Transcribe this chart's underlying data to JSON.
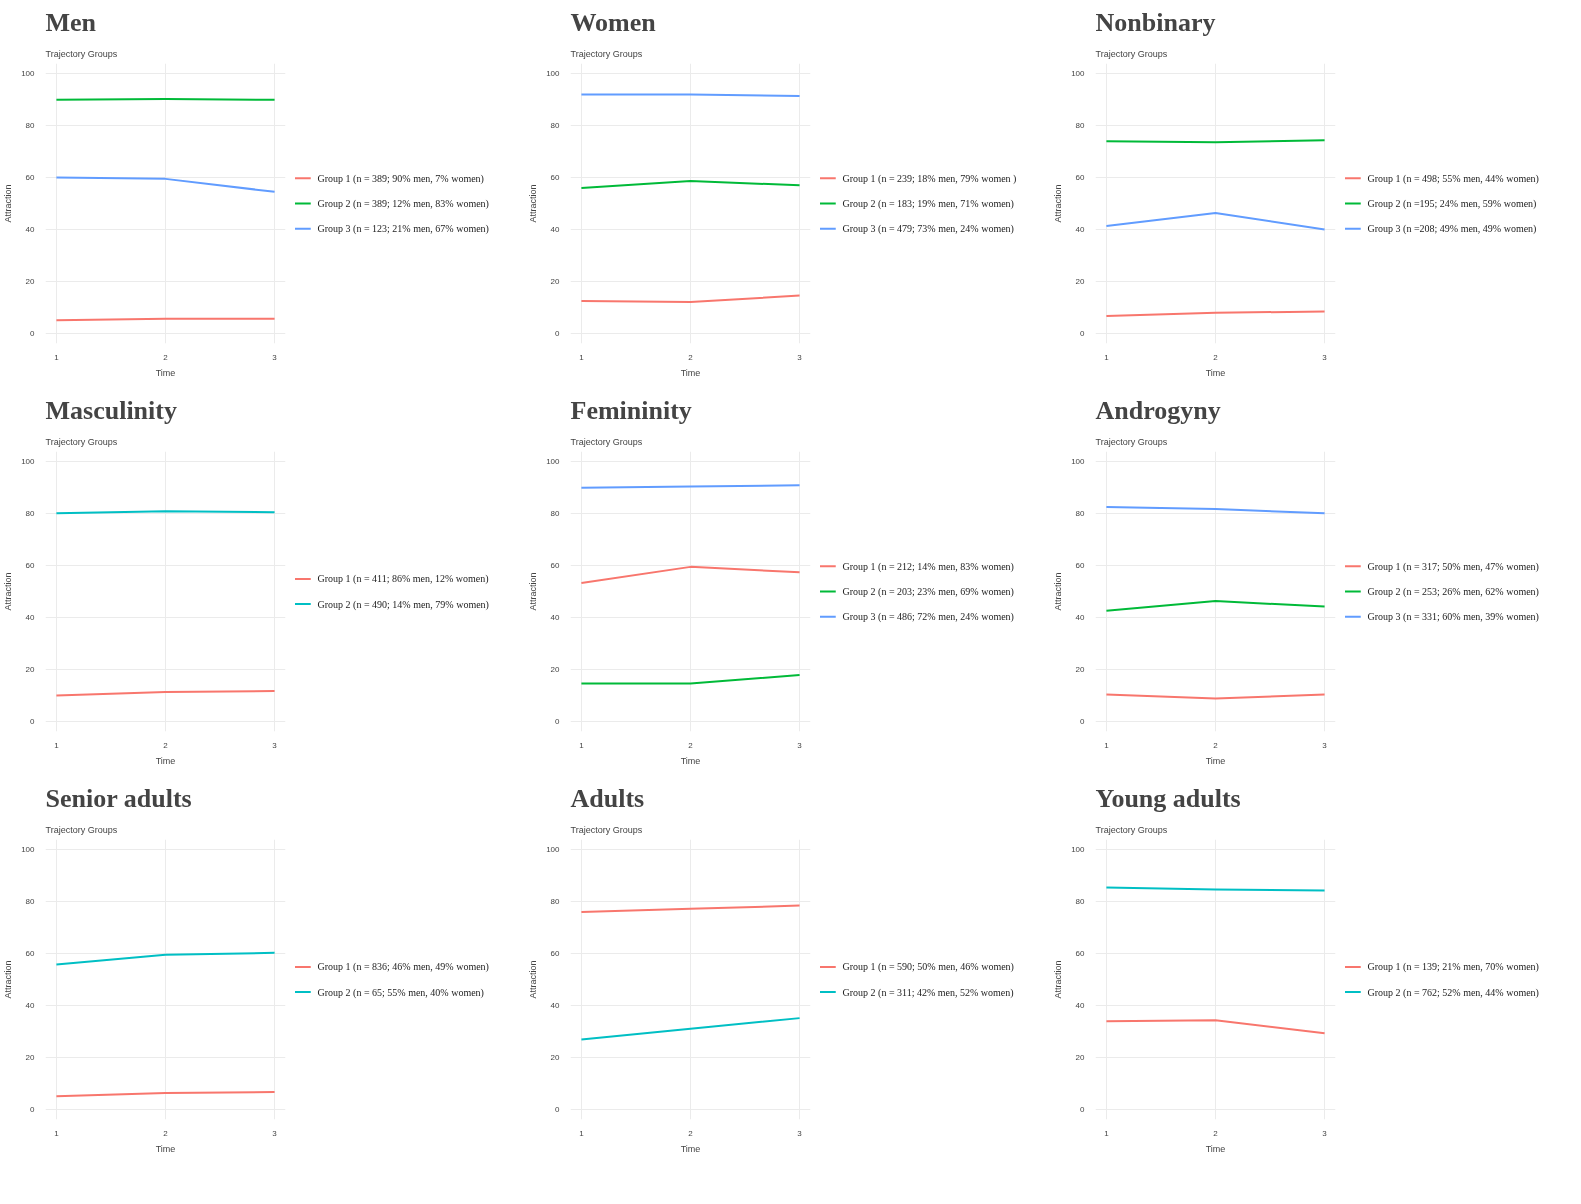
{
  "chart_data": [
    {
      "type": "line",
      "title": "Men",
      "subtitle": "Trajectory Groups",
      "xlabel": "Time",
      "ylabel": "Attraction",
      "x": [
        1,
        2,
        3
      ],
      "xlim": [
        0.9,
        3.1
      ],
      "xticks": [
        1,
        2,
        3
      ],
      "ylim": [
        -4,
        104
      ],
      "yticks": [
        0,
        20,
        40,
        60,
        80,
        100
      ],
      "grid": true,
      "legend": "right",
      "series": [
        {
          "name": "Group 1 (n = 389; 90% men, 7% women)",
          "color": "#f8766d",
          "values": [
            5,
            5.5,
            5.5
          ]
        },
        {
          "name": "Group 2 (n = 389; 12% men, 83% women)",
          "color": "#00ba38",
          "values": [
            90,
            90.3,
            90
          ]
        },
        {
          "name": "Group 3 (n = 123; 21% men, 67% women)",
          "color": "#619cff",
          "values": [
            60,
            59.5,
            54.5
          ]
        }
      ]
    },
    {
      "type": "line",
      "title": "Women",
      "subtitle": "Trajectory Groups",
      "xlabel": "Time",
      "ylabel": "Attraction",
      "x": [
        1,
        2,
        3
      ],
      "xlim": [
        0.9,
        3.1
      ],
      "xticks": [
        1,
        2,
        3
      ],
      "ylim": [
        -4,
        104
      ],
      "yticks": [
        0,
        20,
        40,
        60,
        80,
        100
      ],
      "grid": true,
      "legend": "right",
      "series": [
        {
          "name": "Group 1 (n = 239; 18% men, 79% women )",
          "color": "#f8766d",
          "values": [
            12.4,
            12,
            14.5
          ]
        },
        {
          "name": "Group 2 (n = 183; 19% men, 71% women)",
          "color": "#00ba38",
          "values": [
            56,
            58.7,
            57
          ]
        },
        {
          "name": "Group 3 (n = 479; 73% men, 24% women)",
          "color": "#619cff",
          "values": [
            92,
            92,
            91.5
          ]
        }
      ]
    },
    {
      "type": "line",
      "title": "Nonbinary",
      "subtitle": "Trajectory Groups",
      "xlabel": "Time",
      "ylabel": "Attraction",
      "x": [
        1,
        2,
        3
      ],
      "xlim": [
        0.9,
        3.1
      ],
      "xticks": [
        1,
        2,
        3
      ],
      "ylim": [
        -4,
        104
      ],
      "yticks": [
        0,
        20,
        40,
        60,
        80,
        100
      ],
      "grid": true,
      "legend": "right",
      "series": [
        {
          "name": "Group 1 (n = 498; 55% men, 44% women)",
          "color": "#f8766d",
          "values": [
            6.6,
            7.9,
            8.3
          ]
        },
        {
          "name": "Group 2 (n =195; 24% men, 59% women)",
          "color": "#00ba38",
          "values": [
            74,
            73.6,
            74.4
          ]
        },
        {
          "name": "Group 3 (n =208; 49% men, 49% women)",
          "color": "#619cff",
          "values": [
            41.3,
            46.3,
            40
          ]
        }
      ]
    },
    {
      "type": "line",
      "title": "Masculinity",
      "subtitle": "Trajectory Groups",
      "xlabel": "Time",
      "ylabel": "Attraction",
      "x": [
        1,
        2,
        3
      ],
      "xlim": [
        0.9,
        3.1
      ],
      "xticks": [
        1,
        2,
        3
      ],
      "ylim": [
        -4,
        104
      ],
      "yticks": [
        0,
        20,
        40,
        60,
        80,
        100
      ],
      "grid": true,
      "legend": "right",
      "series": [
        {
          "name": "Group 1 (n = 411; 86% men, 12% women)",
          "color": "#f8766d",
          "values": [
            9.9,
            11.2,
            11.6
          ]
        },
        {
          "name": "Group 2 (n = 490; 14% men, 79% women)",
          "color": "#00bfc4",
          "values": [
            80.2,
            81,
            80.6
          ]
        }
      ]
    },
    {
      "type": "line",
      "title": "Femininity",
      "subtitle": "Trajectory Groups",
      "xlabel": "Time",
      "ylabel": "Attraction",
      "x": [
        1,
        2,
        3
      ],
      "xlim": [
        0.9,
        3.1
      ],
      "xticks": [
        1,
        2,
        3
      ],
      "ylim": [
        -4,
        104
      ],
      "yticks": [
        0,
        20,
        40,
        60,
        80,
        100
      ],
      "grid": true,
      "legend": "right",
      "series": [
        {
          "name": "Group 1 (n = 212; 14% men, 83% women)",
          "color": "#f8766d",
          "values": [
            53.3,
            59.5,
            57.4
          ]
        },
        {
          "name": "Group 2 (n = 203; 23% men, 69% women)",
          "color": "#00ba38",
          "values": [
            14.5,
            14.5,
            17.8
          ]
        },
        {
          "name": "Group 3 (n = 486; 72% men, 24% women)",
          "color": "#619cff",
          "values": [
            90,
            90.5,
            91
          ]
        }
      ]
    },
    {
      "type": "line",
      "title": "Androgyny",
      "subtitle": "Trajectory Groups",
      "xlabel": "Time",
      "ylabel": "Attraction",
      "x": [
        1,
        2,
        3
      ],
      "xlim": [
        0.9,
        3.1
      ],
      "xticks": [
        1,
        2,
        3
      ],
      "ylim": [
        -4,
        104
      ],
      "yticks": [
        0,
        20,
        40,
        60,
        80,
        100
      ],
      "grid": true,
      "legend": "right",
      "series": [
        {
          "name": "Group 1 (n = 317; 50% men, 47% women)",
          "color": "#f8766d",
          "values": [
            10.3,
            8.7,
            10.3
          ]
        },
        {
          "name": "Group 2 (n = 253; 26% men, 62% women)",
          "color": "#00ba38",
          "values": [
            42.6,
            46.3,
            44.2
          ]
        },
        {
          "name": "Group 3 (n = 331; 60% men, 39% women)",
          "color": "#619cff",
          "values": [
            82.6,
            81.8,
            80.2
          ]
        }
      ]
    },
    {
      "type": "line",
      "title": "Senior adults",
      "subtitle": "Trajectory Groups",
      "xlabel": "Time",
      "ylabel": "Attraction",
      "x": [
        1,
        2,
        3
      ],
      "xlim": [
        0.9,
        3.1
      ],
      "xticks": [
        1,
        2,
        3
      ],
      "ylim": [
        -4,
        104
      ],
      "yticks": [
        0,
        20,
        40,
        60,
        80,
        100
      ],
      "grid": true,
      "legend": "right",
      "series": [
        {
          "name": "Group 1 (n = 836; 46% men, 49% women)",
          "color": "#f8766d",
          "values": [
            5,
            6.2,
            6.6
          ]
        },
        {
          "name": "Group 2 (n = 65; 55% men, 40% women)",
          "color": "#00bfc4",
          "values": [
            55.8,
            59.5,
            60.3
          ]
        }
      ]
    },
    {
      "type": "line",
      "title": "Adults",
      "subtitle": "Trajectory Groups",
      "xlabel": "Time",
      "ylabel": "Attraction",
      "x": [
        1,
        2,
        3
      ],
      "xlim": [
        0.9,
        3.1
      ],
      "xticks": [
        1,
        2,
        3
      ],
      "ylim": [
        -4,
        104
      ],
      "yticks": [
        0,
        20,
        40,
        60,
        80,
        100
      ],
      "grid": true,
      "legend": "right",
      "series": [
        {
          "name": "Group 1 (n = 590; 50% men, 46% women)",
          "color": "#f8766d",
          "values": [
            76,
            77.3,
            78.5
          ]
        },
        {
          "name": "Group 2 (n = 311; 42% men, 52% women)",
          "color": "#00bfc4",
          "values": [
            26.9,
            31,
            35.1
          ]
        }
      ]
    },
    {
      "type": "line",
      "title": "Young adults",
      "subtitle": "Trajectory Groups",
      "xlabel": "Time",
      "ylabel": "Attraction",
      "x": [
        1,
        2,
        3
      ],
      "xlim": [
        0.9,
        3.1
      ],
      "xticks": [
        1,
        2,
        3
      ],
      "ylim": [
        -4,
        104
      ],
      "yticks": [
        0,
        20,
        40,
        60,
        80,
        100
      ],
      "grid": true,
      "legend": "right",
      "series": [
        {
          "name": "Group 1 (n = 139; 21% men, 70% women)",
          "color": "#f8766d",
          "values": [
            33.9,
            34.3,
            29.3
          ]
        },
        {
          "name": "Group 2 (n = 762; 52% men, 44% women)",
          "color": "#00bfc4",
          "values": [
            85.5,
            84.7,
            84.3
          ]
        }
      ]
    }
  ]
}
